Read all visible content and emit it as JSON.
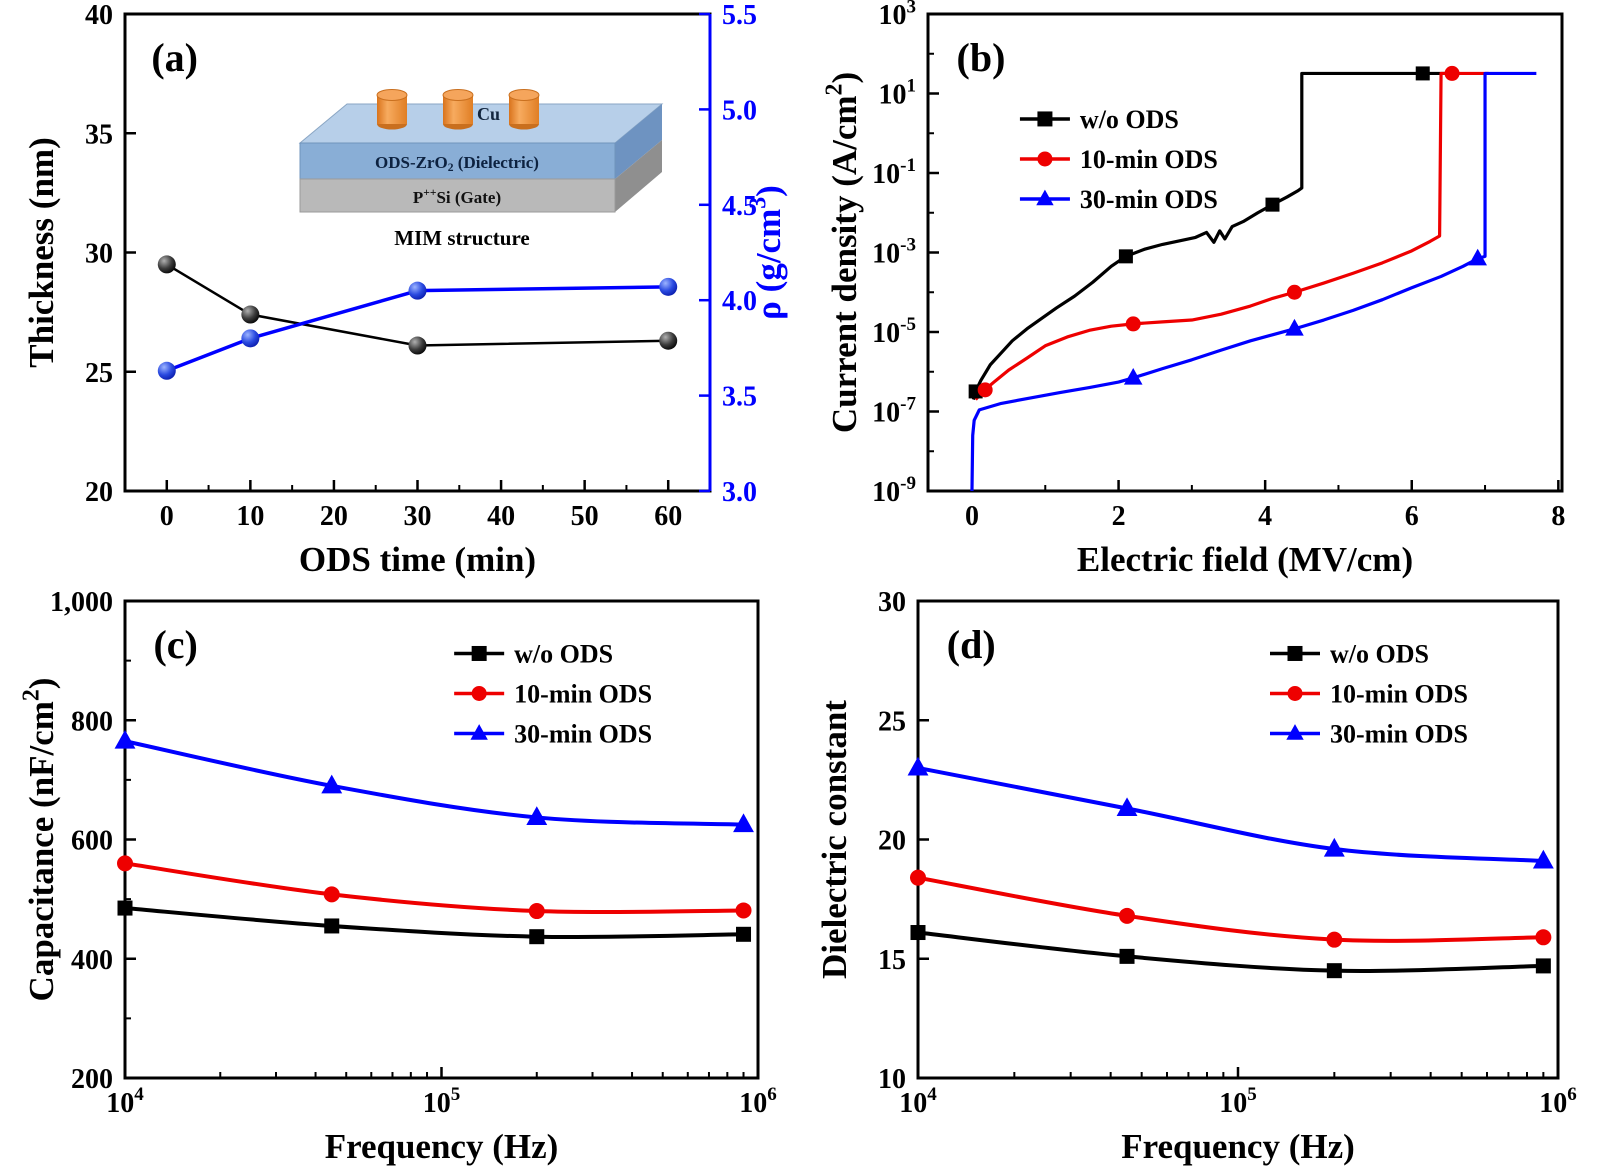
{
  "colors": {
    "black": "#000000",
    "red": "#ee0000",
    "blue": "#0000ff"
  },
  "inset": {
    "cu_label": "Cu",
    "dielectric_label": "ODS-ZrO_{2} (Dielectric)",
    "gate_label": "P^{++}Si (Gate)",
    "caption": "MIM structure"
  },
  "chart_data": [
    {
      "id": "a",
      "type": "line",
      "tag": "(a)",
      "x": {
        "label": "ODS time (min)",
        "min": -5,
        "max": 65,
        "scale": "linear",
        "ticks": [
          0,
          10,
          20,
          30,
          40,
          50,
          60
        ],
        "tick_labels": [
          "0",
          "10",
          "20",
          "30",
          "40",
          "50",
          "60"
        ],
        "minor": [
          5,
          15,
          25,
          35,
          45,
          55
        ]
      },
      "y": {
        "label": "Thickness (nm)",
        "min": 20,
        "max": 40,
        "scale": "linear",
        "ticks": [
          20,
          25,
          30,
          35,
          40
        ],
        "tick_labels": [
          "20",
          "25",
          "30",
          "35",
          "40"
        ]
      },
      "y2": {
        "label": "ρ (g/cm^{3})",
        "min": 3.0,
        "max": 5.5,
        "scale": "linear",
        "ticks": [
          3.0,
          3.5,
          4.0,
          4.5,
          5.0,
          5.5
        ],
        "tick_labels": [
          "3.0",
          "3.5",
          "4.0",
          "4.5",
          "5.0",
          "5.5"
        ],
        "color": "#0000ff"
      },
      "series": [
        {
          "name": "thickness",
          "axis": "y",
          "color": "#000000",
          "width": 2.5,
          "marker": "sphere-black",
          "marker_size": 18,
          "x": [
            0,
            10,
            30,
            60
          ],
          "y": [
            29.5,
            27.4,
            26.1,
            26.3
          ]
        },
        {
          "name": "density",
          "axis": "y2",
          "color": "#0000ff",
          "width": 3.5,
          "marker": "sphere-blue",
          "marker_size": 18,
          "x": [
            0,
            10,
            30,
            60
          ],
          "y": [
            3.63,
            3.8,
            4.05,
            4.07
          ]
        }
      ]
    },
    {
      "id": "b",
      "type": "line",
      "tag": "(b)",
      "x": {
        "label": "Electric field (MV/cm)",
        "min": -0.6,
        "max": 8.05,
        "scale": "linear",
        "ticks": [
          0,
          2,
          4,
          6,
          8
        ],
        "tick_labels": [
          "0",
          "2",
          "4",
          "6",
          "8"
        ],
        "minor": [
          1,
          3,
          5,
          7
        ]
      },
      "y": {
        "label": "Current density (A/cm^{2})",
        "min": 1e-09,
        "max": 1000.0,
        "scale": "log",
        "ticks": [
          1000.0,
          10.0,
          0.1,
          0.001,
          1e-05,
          1e-07,
          1e-09
        ],
        "tick_labels": [
          "10^{3}",
          "10^{1}",
          "10^{-1}",
          "10^{-3}",
          "10^{-5}",
          "10^{-7}",
          "10^{-9}"
        ],
        "minor": [
          100.0,
          1.0,
          0.01,
          0.0001,
          1e-06,
          1e-08
        ]
      },
      "legend": {
        "fx": 0.145,
        "fy": 0.22,
        "entries": [
          {
            "label": "w/o ODS",
            "color": "#000000",
            "marker": "square"
          },
          {
            "label": "10-min ODS",
            "color": "#ee0000",
            "marker": "circle"
          },
          {
            "label": "30-min ODS",
            "color": "#0000ff",
            "marker": "triangle"
          }
        ]
      },
      "series": [
        {
          "name": "wo-ods",
          "color": "#000000",
          "width": 3.2,
          "marker": "square",
          "marker_size": 14,
          "x": [
            0.02,
            0.05,
            0.12,
            0.25,
            0.4,
            0.55,
            0.75,
            0.95,
            1.15,
            1.4,
            1.65,
            1.9,
            2.1,
            2.35,
            2.6,
            2.85,
            3.05,
            3.2,
            3.3,
            3.38,
            3.45,
            3.55,
            3.7,
            3.9,
            4.1,
            4.3,
            4.45,
            4.5,
            4.5,
            6.5
          ],
          "y": [
            2e-07,
            3.2e-07,
            6e-07,
            1.5e-06,
            3e-06,
            6e-06,
            1.2e-05,
            2.2e-05,
            4e-05,
            8e-05,
            0.00018,
            0.00045,
            0.0008,
            0.0012,
            0.0016,
            0.002,
            0.0024,
            0.0032,
            0.0018,
            0.0035,
            0.0022,
            0.0045,
            0.006,
            0.01,
            0.016,
            0.025,
            0.036,
            0.042,
            32,
            32
          ],
          "marker_points": [
            [
              0.05,
              3.2e-07
            ],
            [
              2.1,
              0.0008
            ],
            [
              4.1,
              0.016
            ],
            [
              6.15,
              32
            ]
          ]
        },
        {
          "name": "10min-ods",
          "color": "#ee0000",
          "width": 3.2,
          "marker": "circle",
          "marker_size": 15,
          "x": [
            0.05,
            0.15,
            0.3,
            0.5,
            0.75,
            1.0,
            1.3,
            1.6,
            1.9,
            2.2,
            2.6,
            3.0,
            3.4,
            3.8,
            4.1,
            4.4,
            4.8,
            5.2,
            5.6,
            6.0,
            6.25,
            6.38,
            6.4,
            7.05
          ],
          "y": [
            2e-07,
            3.2e-07,
            5.5e-07,
            1.1e-06,
            2.2e-06,
            4.5e-06,
            7.5e-06,
            1.1e-05,
            1.4e-05,
            1.6e-05,
            1.8e-05,
            2e-05,
            2.8e-05,
            4.5e-05,
            7e-05,
            0.0001,
            0.00017,
            0.0003,
            0.00055,
            0.0011,
            0.0019,
            0.0026,
            32,
            32
          ],
          "marker_points": [
            [
              0.18,
              3.5e-07
            ],
            [
              2.2,
              1.6e-05
            ],
            [
              4.4,
              0.0001
            ],
            [
              6.55,
              32
            ]
          ]
        },
        {
          "name": "30min-ods",
          "color": "#0000ff",
          "width": 3.2,
          "marker": "triangle",
          "marker_size": 16,
          "x": [
            0,
            0.01,
            0.03,
            0.1,
            0.4,
            0.8,
            1.2,
            1.6,
            2.0,
            2.2,
            2.6,
            3.0,
            3.4,
            3.8,
            4.1,
            4.4,
            4.8,
            5.2,
            5.6,
            6.0,
            6.4,
            6.7,
            6.9,
            7.0,
            7.0,
            7.7
          ],
          "y": [
            1e-09,
            2.5e-08,
            6e-08,
            1.1e-07,
            1.6e-07,
            2.2e-07,
            3e-07,
            4e-07,
            5.5e-07,
            7e-07,
            1.2e-06,
            2e-06,
            3.5e-06,
            6e-06,
            8.5e-06,
            1.2e-05,
            2e-05,
            3.5e-05,
            6.5e-05,
            0.00013,
            0.00025,
            0.00045,
            0.0007,
            0.0008,
            32,
            32
          ],
          "marker_points": [
            [
              2.2,
              7e-07
            ],
            [
              4.4,
              1.2e-05
            ],
            [
              6.9,
              0.0007
            ]
          ]
        }
      ]
    },
    {
      "id": "c",
      "type": "line",
      "tag": "(c)",
      "x": {
        "label": "Frequency (Hz)",
        "min": 10000.0,
        "max": 1000000.0,
        "scale": "log",
        "ticks": [
          10000.0,
          100000.0,
          1000000.0
        ],
        "tick_labels": [
          "10^{4}",
          "10^{5}",
          "10^{6}"
        ],
        "log_minors": true
      },
      "y": {
        "label": "Capacitance (nF/cm^{2})",
        "min": 200,
        "max": 1000,
        "scale": "linear",
        "ticks": [
          200,
          400,
          600,
          800,
          1000
        ],
        "tick_labels": [
          "200",
          "400",
          "600",
          "800",
          "1,000"
        ],
        "minor": [
          300,
          500,
          700,
          900
        ]
      },
      "legend": {
        "fx": 0.52,
        "fy": 0.11,
        "entries": [
          {
            "label": "w/o ODS",
            "color": "#000000",
            "marker": "square"
          },
          {
            "label": "10-min ODS",
            "color": "#ee0000",
            "marker": "circle"
          },
          {
            "label": "30-min ODS",
            "color": "#0000ff",
            "marker": "triangle"
          }
        ]
      },
      "series": [
        {
          "name": "wo-ods",
          "color": "#000000",
          "width": 4,
          "marker": "square",
          "marker_size": 15,
          "smooth": true,
          "x": [
            10000.0,
            45000.0,
            200000.0,
            900000.0
          ],
          "y": [
            485,
            455,
            437,
            441
          ]
        },
        {
          "name": "10min-ods",
          "color": "#ee0000",
          "width": 4,
          "marker": "circle",
          "marker_size": 16,
          "smooth": true,
          "x": [
            10000.0,
            45000.0,
            200000.0,
            900000.0
          ],
          "y": [
            560,
            508,
            480,
            481
          ]
        },
        {
          "name": "30min-ods",
          "color": "#0000ff",
          "width": 4,
          "marker": "triangle",
          "marker_size": 18,
          "smooth": true,
          "x": [
            10000.0,
            45000.0,
            200000.0,
            900000.0
          ],
          "y": [
            765,
            690,
            637,
            625
          ]
        }
      ]
    },
    {
      "id": "d",
      "type": "line",
      "tag": "(d)",
      "x": {
        "label": "Frequency (Hz)",
        "min": 10000.0,
        "max": 1000000.0,
        "scale": "log",
        "ticks": [
          10000.0,
          100000.0,
          1000000.0
        ],
        "tick_labels": [
          "10^{4}",
          "10^{5}",
          "10^{6}"
        ],
        "log_minors": true
      },
      "y": {
        "label": "Dielectric constant",
        "min": 10,
        "max": 30,
        "scale": "linear",
        "ticks": [
          10,
          15,
          20,
          25,
          30
        ],
        "tick_labels": [
          "10",
          "15",
          "20",
          "25",
          "30"
        ]
      },
      "legend": {
        "fx": 0.55,
        "fy": 0.11,
        "entries": [
          {
            "label": "w/o ODS",
            "color": "#000000",
            "marker": "square"
          },
          {
            "label": "10-min ODS",
            "color": "#ee0000",
            "marker": "circle"
          },
          {
            "label": "30-min ODS",
            "color": "#0000ff",
            "marker": "triangle"
          }
        ]
      },
      "series": [
        {
          "name": "wo-ods",
          "color": "#000000",
          "width": 4,
          "marker": "square",
          "marker_size": 15,
          "smooth": true,
          "x": [
            10000.0,
            45000.0,
            200000.0,
            900000.0
          ],
          "y": [
            16.1,
            15.1,
            14.5,
            14.7
          ]
        },
        {
          "name": "10min-ods",
          "color": "#ee0000",
          "width": 4,
          "marker": "circle",
          "marker_size": 16,
          "smooth": true,
          "x": [
            10000.0,
            45000.0,
            200000.0,
            900000.0
          ],
          "y": [
            18.4,
            16.8,
            15.8,
            15.9
          ]
        },
        {
          "name": "30min-ods",
          "color": "#0000ff",
          "width": 4,
          "marker": "triangle",
          "marker_size": 18,
          "smooth": true,
          "x": [
            10000.0,
            45000.0,
            200000.0,
            900000.0
          ],
          "y": [
            23.0,
            21.3,
            19.6,
            19.1
          ]
        }
      ]
    }
  ]
}
